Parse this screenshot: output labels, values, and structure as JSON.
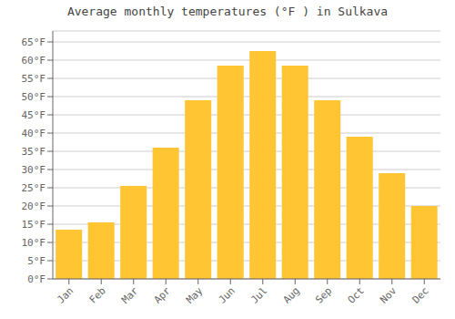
{
  "chart_data": {
    "type": "bar",
    "title": "Average monthly temperatures (°F ) in Sulkava",
    "categories": [
      "Jan",
      "Feb",
      "Mar",
      "Apr",
      "May",
      "Jun",
      "Jul",
      "Aug",
      "Sep",
      "Oct",
      "Nov",
      "Dec"
    ],
    "values": [
      13.5,
      15.5,
      25.5,
      36.0,
      49.0,
      58.5,
      62.5,
      58.5,
      49.0,
      39.0,
      29.0,
      20.0
    ],
    "color": "#FFC533",
    "ylim": [
      0,
      68
    ],
    "yticks": [
      {
        "value": 0,
        "label": "0°F"
      },
      {
        "value": 5,
        "label": "5°F"
      },
      {
        "value": 10,
        "label": "10°F"
      },
      {
        "value": 15,
        "label": "15°F"
      },
      {
        "value": 20,
        "label": "20°F"
      },
      {
        "value": 25,
        "label": "25°F"
      },
      {
        "value": 30,
        "label": "30°F"
      },
      {
        "value": 35,
        "label": "35°F"
      },
      {
        "value": 40,
        "label": "40°F"
      },
      {
        "value": 45,
        "label": "45°F"
      },
      {
        "value": 50,
        "label": "50°F"
      },
      {
        "value": 55,
        "label": "55°F"
      },
      {
        "value": 60,
        "label": "60°F"
      },
      {
        "value": 65,
        "label": "65°F"
      }
    ],
    "grid": true
  }
}
